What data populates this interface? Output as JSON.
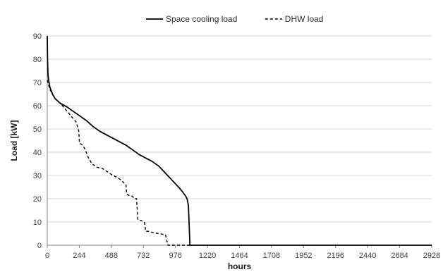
{
  "chart_data": {
    "type": "line",
    "title": "",
    "xlabel": "hours",
    "ylabel": "Load [kW]",
    "xlim": [
      0,
      2928
    ],
    "ylim": [
      0,
      90
    ],
    "x_ticks": [
      0,
      244,
      488,
      732,
      976,
      1220,
      1464,
      1708,
      1952,
      2196,
      2440,
      2684,
      2928
    ],
    "y_ticks": [
      0,
      10,
      20,
      30,
      40,
      50,
      60,
      70,
      80,
      90
    ],
    "grid": "horizontal",
    "legend_position": "top-center",
    "series": [
      {
        "name": "Space cooling load",
        "style": "solid",
        "color": "#000000",
        "x": [
          0,
          2,
          5,
          10,
          20,
          40,
          60,
          100,
          150,
          200,
          250,
          300,
          350,
          400,
          450,
          500,
          550,
          600,
          650,
          700,
          750,
          800,
          850,
          900,
          950,
          1000,
          1030,
          1050,
          1065,
          1075,
          1080,
          1083,
          1085,
          1085,
          1200,
          2928
        ],
        "y": [
          90,
          80,
          74,
          71,
          68,
          65,
          63,
          61,
          59.5,
          57.5,
          55.5,
          53.5,
          51,
          49,
          47.5,
          46,
          44.5,
          43,
          41,
          39,
          37.5,
          36,
          34,
          31,
          28,
          25,
          23,
          21.5,
          20,
          17,
          10,
          5,
          2,
          0,
          0,
          0
        ]
      },
      {
        "name": "DHW load",
        "style": "dashed",
        "color": "#000000",
        "x": [
          0,
          20,
          40,
          60,
          100,
          130,
          160,
          190,
          220,
          240,
          245,
          270,
          290,
          310,
          340,
          380,
          420,
          460,
          500,
          540,
          580,
          600,
          605,
          620,
          650,
          660,
          680,
          690,
          695,
          720,
          740,
          750,
          760,
          780,
          800,
          850,
          900,
          920,
          925,
          1000,
          1085,
          1100
        ],
        "y": [
          71,
          67,
          65,
          63,
          61,
          59,
          57,
          55,
          53,
          49,
          44,
          43,
          41,
          38,
          35,
          33.5,
          33,
          31.5,
          30,
          29,
          27,
          26,
          22,
          21.5,
          21,
          20,
          20,
          11,
          11,
          10.5,
          10,
          6,
          6,
          6,
          5.5,
          5,
          4.5,
          0,
          0,
          0,
          0,
          0
        ]
      }
    ]
  }
}
